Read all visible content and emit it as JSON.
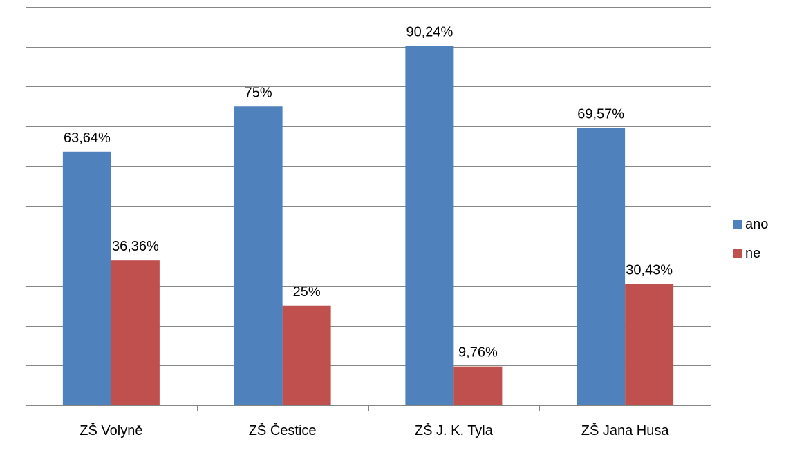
{
  "chart_data": {
    "type": "bar",
    "categories": [
      "ZŠ Volyně",
      "ZŠ Čestice",
      "ZŠ J. K. Tyla",
      "ZŠ Jana Husa"
    ],
    "series": [
      {
        "name": "ano",
        "values": [
          63.64,
          75,
          90.24,
          69.57
        ],
        "labels": [
          "63,64%",
          "75%",
          "90,24%",
          "69,57%"
        ],
        "color": "#4f81bd"
      },
      {
        "name": "ne",
        "values": [
          36.36,
          25,
          9.76,
          30.43
        ],
        "labels": [
          "36,36%",
          "25%",
          "9,76%",
          "30,43%"
        ],
        "color": "#c0504d"
      }
    ],
    "ylim": [
      0,
      100
    ],
    "ytick_step": 10,
    "grid": true,
    "y_tick_labels_shown": false,
    "legend_position": "right",
    "title": "",
    "xlabel": "",
    "ylabel": ""
  }
}
